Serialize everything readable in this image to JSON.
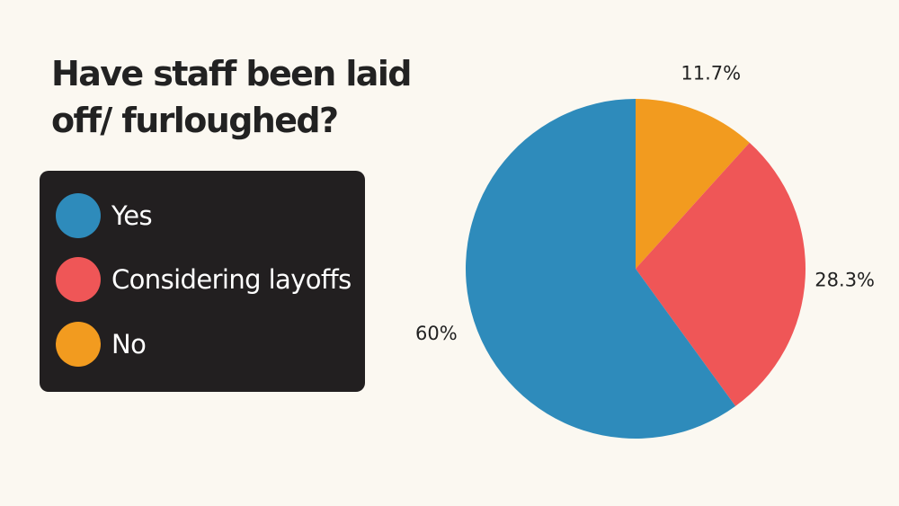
{
  "chart_data": {
    "type": "pie",
    "title": "Have staff been laid off/ furloughed?",
    "slices": [
      {
        "name": "No",
        "value": 11.7,
        "label": "11.7%",
        "color": "#f29b1f"
      },
      {
        "name": "Considering layoffs",
        "value": 28.3,
        "label": "28.3%",
        "color": "#ef5657"
      },
      {
        "name": "Yes",
        "value": 60,
        "label": "60%",
        "color": "#2e8bbb"
      }
    ],
    "legend": {
      "placement": "left",
      "entries": [
        {
          "label": "Yes",
          "color": "#2e8bbb"
        },
        {
          "label": "Considering layoffs",
          "color": "#ef5657"
        },
        {
          "label": "No",
          "color": "#f29b1f"
        }
      ]
    }
  }
}
